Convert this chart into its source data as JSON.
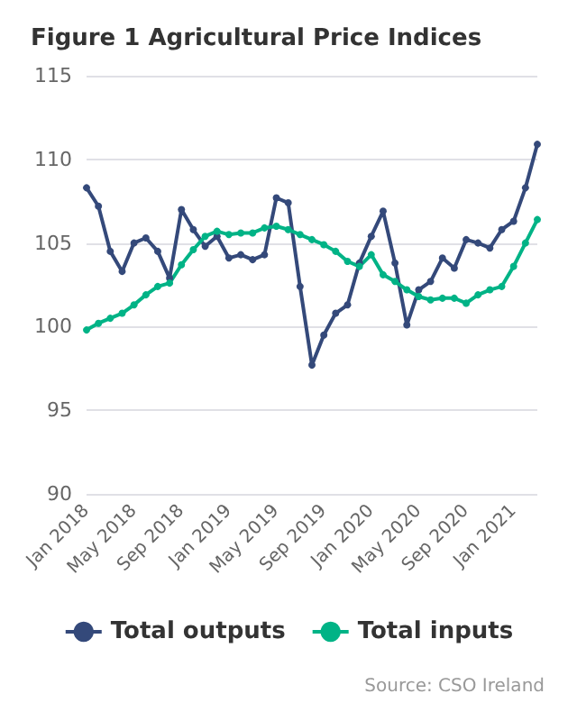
{
  "chart_data": {
    "type": "line",
    "title": "Figure 1 Agricultural Price Indices",
    "categories": [
      "Jan 2018",
      null,
      null,
      null,
      "May 2018",
      null,
      null,
      null,
      "Sep 2018",
      null,
      null,
      null,
      "Jan 2019",
      null,
      null,
      null,
      "May 2019",
      null,
      null,
      null,
      "Sep 2019",
      null,
      null,
      null,
      "Jan 2020",
      null,
      null,
      null,
      "May 2020",
      null,
      null,
      null,
      "Sep 2020",
      null,
      null,
      null,
      "Jan 2021",
      null,
      null
    ],
    "series": [
      {
        "name": "Total outputs",
        "color": "#34497a",
        "values": [
          108.3,
          107.2,
          104.5,
          103.3,
          105.0,
          105.3,
          104.5,
          102.9,
          107.0,
          105.8,
          104.8,
          105.4,
          104.1,
          104.3,
          104.0,
          104.3,
          107.7,
          107.4,
          102.4,
          97.7,
          99.5,
          100.8,
          101.3,
          103.8,
          105.4,
          106.9,
          103.8,
          100.1,
          102.2,
          102.7,
          104.1,
          103.5,
          105.2,
          105.0,
          104.7,
          105.8,
          106.3,
          108.3,
          110.9
        ]
      },
      {
        "name": "Total inputs",
        "color": "#00b386",
        "values": [
          99.8,
          100.2,
          100.5,
          100.8,
          101.3,
          101.9,
          102.4,
          102.6,
          103.7,
          104.6,
          105.4,
          105.7,
          105.5,
          105.6,
          105.6,
          105.9,
          106.0,
          105.8,
          105.5,
          105.2,
          104.9,
          104.5,
          103.9,
          103.6,
          104.3,
          103.1,
          102.7,
          102.2,
          101.8,
          101.6,
          101.7,
          101.7,
          101.4,
          101.9,
          102.2,
          102.4,
          103.6,
          105.0,
          106.4
        ]
      }
    ],
    "ylim": [
      90,
      115
    ],
    "yticks": [
      90,
      95,
      100,
      105,
      110,
      115
    ],
    "grid": "y",
    "legend": "bottom",
    "marker": "circle",
    "line_style": "solid",
    "annotations": [
      "Source: CSO Ireland"
    ]
  }
}
